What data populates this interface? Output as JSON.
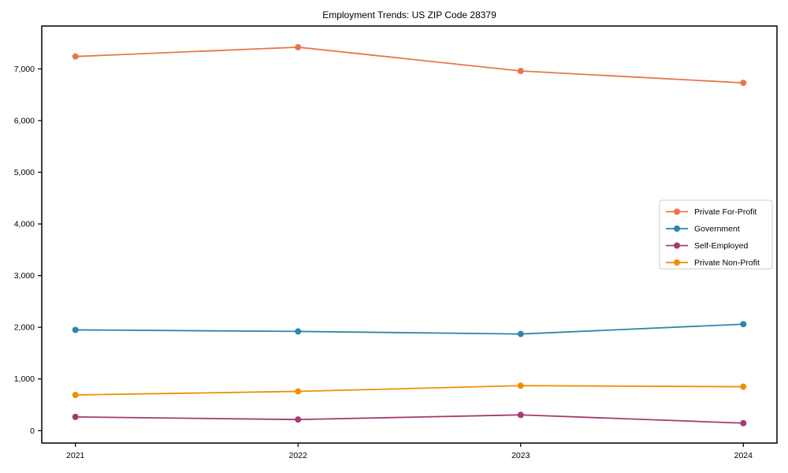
{
  "chart_data": {
    "type": "line",
    "title": "Employment Trends: US ZIP Code 28379",
    "categories": [
      "2021",
      "2022",
      "2023",
      "2024"
    ],
    "series": [
      {
        "name": "Private For-Profit",
        "color": "#E8764B",
        "values": [
          7240,
          7420,
          6960,
          6730
        ]
      },
      {
        "name": "Government",
        "color": "#2E86AB",
        "values": [
          1950,
          1920,
          1870,
          2060
        ]
      },
      {
        "name": "Self-Employed",
        "color": "#A23B72",
        "values": [
          265,
          215,
          305,
          145
        ]
      },
      {
        "name": "Private Non-Profit",
        "color": "#F18F01",
        "values": [
          690,
          760,
          870,
          850
        ]
      }
    ],
    "xlabel": "",
    "ylabel": "",
    "ylim": [
      -240,
      7830
    ],
    "yticks": [
      0,
      1000,
      2000,
      3000,
      4000,
      5000,
      6000,
      7000
    ],
    "ytick_labels": [
      "0",
      "1,000",
      "2,000",
      "3,000",
      "4,000",
      "5,000",
      "6,000",
      "7,000"
    ],
    "legend": {
      "position": "center-right",
      "entries": [
        "Private For-Profit",
        "Government",
        "Self-Employed",
        "Private Non-Profit"
      ]
    },
    "grid": false,
    "marker": "circle",
    "axis_color": "#000000",
    "text_color": "#000000",
    "legend_border_color": "#cccccc",
    "background_color": "#ffffff"
  }
}
